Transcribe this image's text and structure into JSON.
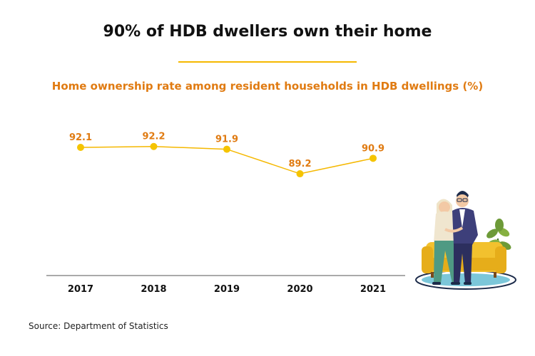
{
  "header": {
    "title": "90% of HDB dwellers own their home",
    "subtitle": "Home ownership rate among resident households in HDB dwellings (%)"
  },
  "footer": {
    "source": "Source: Department of Statistics"
  },
  "colors": {
    "line": "#f5b800",
    "point": "#f5c400",
    "data_label": "#e07b12",
    "divider": "#f5b800",
    "axis": "#555555"
  },
  "illustration": {
    "icon": "couple-on-sofa-illustration"
  },
  "chart_data": {
    "type": "line",
    "title": "Home ownership rate among resident households in HDB dwellings (%)",
    "categories": [
      "2017",
      "2018",
      "2019",
      "2020",
      "2021"
    ],
    "series": [
      {
        "values": [
          92.1,
          92.2,
          91.9,
          89.2,
          90.9
        ]
      }
    ],
    "data_labels": [
      "92.1",
      "92.2",
      "91.9",
      "89.2",
      "90.9"
    ],
    "ylim": [
      78,
      95
    ],
    "grid": false,
    "legend": "none",
    "xlabel": "",
    "ylabel": ""
  }
}
